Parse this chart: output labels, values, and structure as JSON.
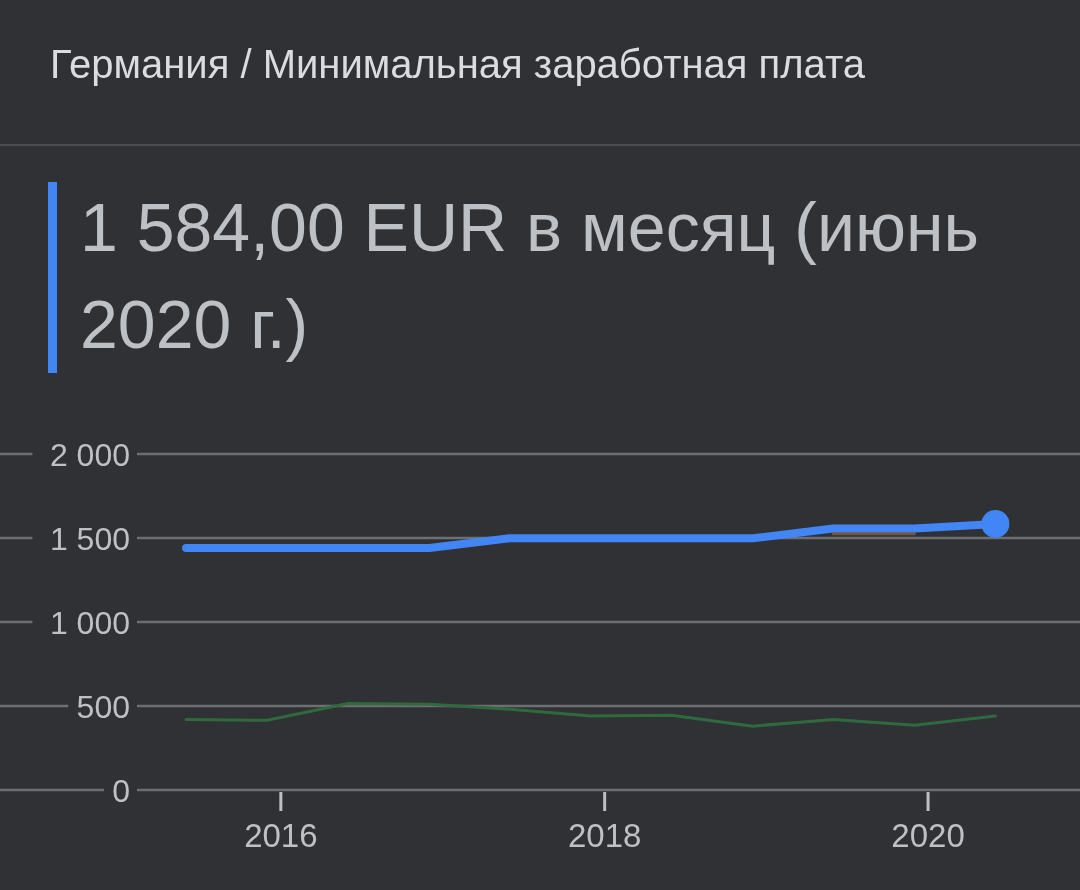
{
  "chart_data": {
    "type": "line",
    "title": "Германия / Минимальная заработная плата",
    "subtitle": "1 584,00 EUR в месяц (июнь 2020 г.)",
    "x": [
      "2015-06",
      "2015-12",
      "2016-06",
      "2016-12",
      "2017-06",
      "2017-12",
      "2018-06",
      "2018-12",
      "2019-06",
      "2019-12",
      "2020-06"
    ],
    "series": [
      {
        "color": "#2f6a3e",
        "values": [
          420,
          415,
          515,
          510,
          480,
          440,
          445,
          380,
          420,
          385,
          440
        ]
      },
      {
        "color": "#7a5535",
        "values": [
          null,
          null,
          null,
          null,
          null,
          null,
          null,
          null,
          1525,
          1525,
          null
        ]
      },
      {
        "color": "#4285f4",
        "values": [
          1440,
          1440,
          1440,
          1440,
          1498,
          1498,
          1498,
          1498,
          1557,
          1557,
          1584
        ]
      },
      {
        "type": "scatter",
        "x": [
          "2020-06"
        ],
        "values": [
          1584
        ],
        "color": "#4285f4",
        "marker": "circle"
      }
    ],
    "xlim": [
      "2014-04-07",
      "2020-12-09"
    ],
    "xticks": [
      "2016",
      "2018",
      "2020"
    ],
    "ylim": [
      0,
      2000
    ],
    "yticks": [
      {
        "value": 2000,
        "label": "2 000"
      },
      {
        "value": 1500,
        "label": "1 500"
      },
      {
        "value": 1000,
        "label": "1 000"
      },
      500,
      0
    ],
    "grid": "y"
  }
}
